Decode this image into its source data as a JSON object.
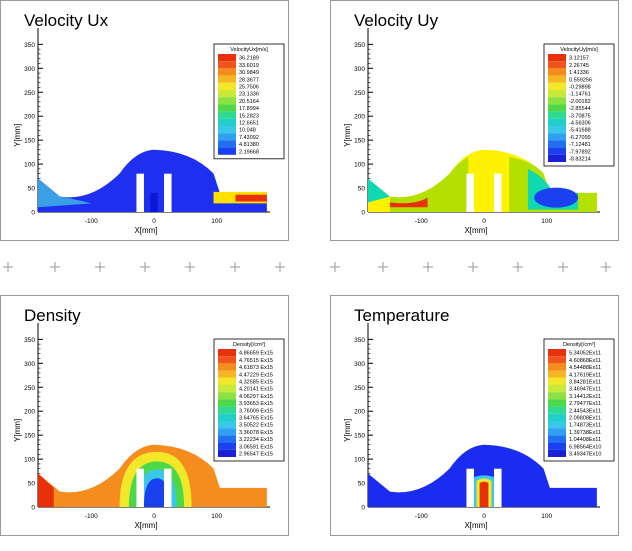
{
  "panels": [
    {
      "id": "ux",
      "title": "Velocity Ux",
      "legend_title": "VelocityUx[m/s]",
      "legend_values": [
        "36.2189",
        "33.6019",
        "30.9849",
        "28.3677",
        "25.7506",
        "23.1336",
        "20.5164",
        "17.8994",
        "15.2823",
        "12.6651",
        "10.048",
        "7.43092",
        "4.81380",
        "2.19668"
      ],
      "region_colors": {
        "body": "#1e2ff0",
        "left_jet": "#3aa0e6",
        "right_jet_outer": "#ffe000",
        "right_jet_core": "#e8300a",
        "inlet_cone": "#0a18d8"
      },
      "xlabel": "X[mm]",
      "ylabel": "Y[mm]",
      "xticks": [
        "-100",
        "0",
        "100"
      ],
      "yticks": [
        "0",
        "50",
        "100",
        "150",
        "200",
        "250",
        "300",
        "350"
      ]
    },
    {
      "id": "uy",
      "title": "Velocity Uy",
      "legend_title": "VelocityUy[m/s]",
      "legend_values": [
        "3.12157",
        "2.26745",
        "1.41336",
        "0.559256",
        "-0.29898",
        "-1.14761",
        "-2.00182",
        "-2.85544",
        "-3.70875",
        "-4.56306",
        "-5.41688",
        "-6.27099",
        "-7.12481",
        "-7.97892",
        "-8.83214"
      ],
      "region_colors": {
        "body": "#fff200",
        "flank": "#b4e000",
        "right_low": "#10d8b0",
        "right_blue": "#1a40f0",
        "left_red": "#e8300a"
      },
      "xlabel": "X[mm]",
      "ylabel": "Y[mm]",
      "xticks": [
        "-100",
        "0",
        "100"
      ],
      "yticks": [
        "0",
        "50",
        "100",
        "150",
        "200",
        "250",
        "300",
        "350"
      ]
    },
    {
      "id": "density",
      "title": "Density",
      "legend_title": "Density[/cm³]",
      "legend_values": [
        "4.86659 Ex15",
        "4.76515 Ex15",
        "4.61873 Ex15",
        "4.47229 Ex15",
        "4.32585 Ex15",
        "4.20141 Ex15",
        "4.06297 Ex15",
        "3.93653 Ex15",
        "3.76009 Ex15",
        "3.64765 Ex15",
        "3.50522 Ex15",
        "3.36078 Ex15",
        "3.22234 Ex15",
        "3.06591 Ex15",
        "2.96547 Ex15"
      ],
      "region_colors": {
        "body": "#f58c1e",
        "ring_yellow": "#f2e82a",
        "ring_green": "#4cd848",
        "ring_cyan": "#3ac8e8",
        "core_blue": "#1a40f0",
        "left_red": "#e8300a"
      },
      "xlabel": "X[mm]",
      "ylabel": "Y[mm]",
      "xticks": [
        "-100",
        "0",
        "100"
      ],
      "yticks": [
        "0",
        "50",
        "100",
        "150",
        "200",
        "250",
        "300",
        "350"
      ]
    },
    {
      "id": "temperature",
      "title": "Temperature",
      "legend_title": "Density[/cm³]",
      "legend_values": [
        "5.34052Ex11",
        "4.60868Ex11",
        "4.54488Ex11",
        "4.17619Ex11",
        "3.84281Ex11",
        "3.46947Ex11",
        "3.14412Ex11",
        "2.79477Ex11",
        "2.44543Ex11",
        "2.09808Ex11",
        "1.74873Ex11",
        "1.39738Ex11",
        "1.04408Ex11",
        "6.98564Ex10",
        "3.49347Ex10"
      ],
      "region_colors": {
        "body": "#1a2cf0",
        "core_red": "#e8300a",
        "core_yellow": "#f2e82a",
        "core_cyan": "#3ac8e8"
      },
      "xlabel": "X[mm]",
      "ylabel": "Y[mm]",
      "xticks": [
        "-100",
        "0",
        "100"
      ],
      "yticks": [
        "0",
        "50",
        "100",
        "150",
        "200",
        "250",
        "300",
        "350"
      ]
    }
  ],
  "palette": [
    "#e8300a",
    "#f0541a",
    "#f58c1e",
    "#f5b824",
    "#f2e82a",
    "#c8e83a",
    "#8ce040",
    "#4cd848",
    "#30d890",
    "#20d0c8",
    "#3ac8e8",
    "#30a0f0",
    "#2070f0",
    "#1a40f0",
    "#1a20d8"
  ],
  "chart_data": [
    {
      "type": "heatmap",
      "title": "Velocity Ux",
      "xlabel": "X[mm]",
      "ylabel": "Y[mm]",
      "xlim": [
        -185,
        185
      ],
      "ylim": [
        0,
        380
      ],
      "colorbar_label": "VelocityUx[m/s]",
      "colorbar_range": [
        2.19668,
        36.2189
      ]
    },
    {
      "type": "heatmap",
      "title": "Velocity Uy",
      "xlabel": "X[mm]",
      "ylabel": "Y[mm]",
      "xlim": [
        -185,
        185
      ],
      "ylim": [
        0,
        380
      ],
      "colorbar_label": "VelocityUy[m/s]",
      "colorbar_range": [
        -8.83214,
        3.12157
      ]
    },
    {
      "type": "heatmap",
      "title": "Density",
      "xlabel": "X[mm]",
      "ylabel": "Y[mm]",
      "xlim": [
        -185,
        185
      ],
      "ylim": [
        0,
        380
      ],
      "colorbar_label": "Density[/cm³]",
      "colorbar_range": [
        "2.96547 Ex15",
        "4.86659 Ex15"
      ]
    },
    {
      "type": "heatmap",
      "title": "Temperature",
      "xlabel": "X[mm]",
      "ylabel": "Y[mm]",
      "xlim": [
        -185,
        185
      ],
      "ylim": [
        0,
        380
      ],
      "colorbar_label": "Density[/cm³]",
      "colorbar_range": [
        "3.49347Ex10",
        "5.34052Ex11"
      ]
    }
  ]
}
